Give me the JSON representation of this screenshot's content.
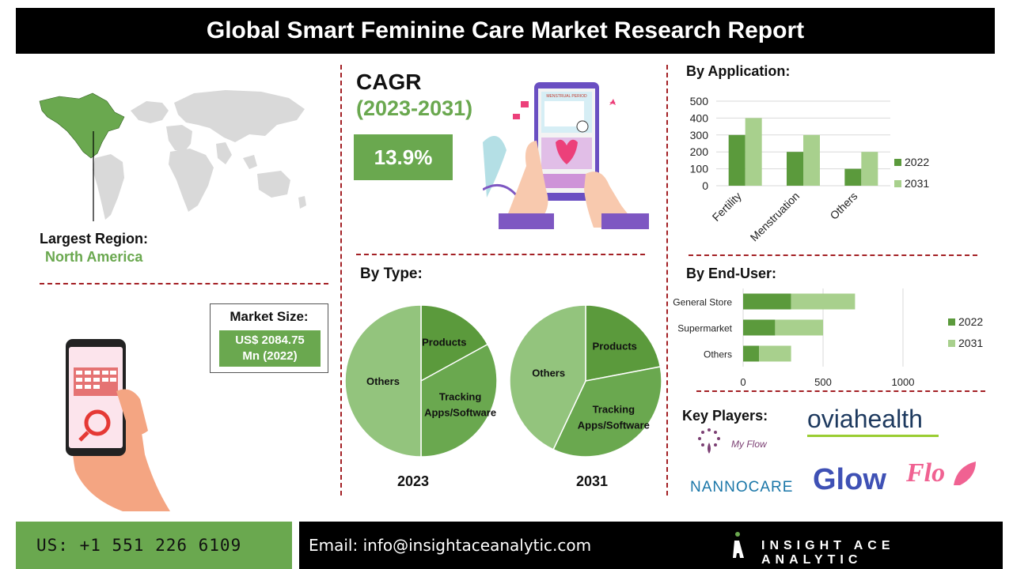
{
  "title": "Global Smart Feminine Care Market Research Report",
  "region": {
    "label": "Largest Region:",
    "value": "North America"
  },
  "market_size": {
    "label": "Market Size:",
    "value_line1": "US$ 2084.75",
    "value_line2": "Mn (2022)"
  },
  "cagr": {
    "label": "CAGR",
    "years": "(2023-2031)",
    "value": "13.9%"
  },
  "phone_illustration": {
    "screen_title": "MENSTRUAL PERIOD"
  },
  "by_type": {
    "heading": "By Type:"
  },
  "by_application": {
    "heading": "By Application:"
  },
  "by_end_user": {
    "heading": "By End-User:"
  },
  "key_players": {
    "heading": "Key Players:",
    "logos": [
      "My Flow",
      "oviahealth",
      "NANNOCARE",
      "Glow",
      "Flo"
    ]
  },
  "footer": {
    "phone": "US: +1 551 226 6109",
    "email": "Email: info@insightaceanalytic.com",
    "brand": "INSIGHT ACE ANALYTIC"
  },
  "colors": {
    "dark_green": "#5b9a3c",
    "mid_green": "#6aa84f",
    "light_green": "#a8d08d",
    "pie_light": "#93c47d",
    "divider": "#a32025"
  },
  "chart_data": [
    {
      "id": "by_application",
      "type": "bar",
      "categories": [
        "Fertility",
        "Menstruation",
        "Others"
      ],
      "series": [
        {
          "name": "2022",
          "values": [
            300,
            200,
            100
          ]
        },
        {
          "name": "2031",
          "values": [
            400,
            300,
            200
          ]
        }
      ],
      "ylim": [
        0,
        500
      ],
      "yticks": [
        0,
        100,
        200,
        300,
        400,
        500
      ],
      "grid": true,
      "legend": "right"
    },
    {
      "id": "by_end_user",
      "type": "bar",
      "orientation": "horizontal",
      "stacked": true,
      "categories": [
        "General Store",
        "Supermarket",
        "Others"
      ],
      "series": [
        {
          "name": "2022",
          "values": [
            300,
            200,
            100
          ]
        },
        {
          "name": "2031",
          "values": [
            400,
            300,
            200
          ]
        }
      ],
      "xlim": [
        0,
        1000
      ],
      "xticks": [
        0,
        500,
        1000
      ],
      "grid": true,
      "legend": "right"
    },
    {
      "id": "type_2023",
      "type": "pie",
      "title": "2023",
      "labels": [
        "Products",
        "Tracking Apps/Software",
        "Others"
      ],
      "values": [
        17,
        33,
        50
      ]
    },
    {
      "id": "type_2031",
      "type": "pie",
      "title": "2031",
      "labels": [
        "Products",
        "Tracking Apps/Software",
        "Others"
      ],
      "values": [
        22,
        35,
        43
      ]
    }
  ]
}
